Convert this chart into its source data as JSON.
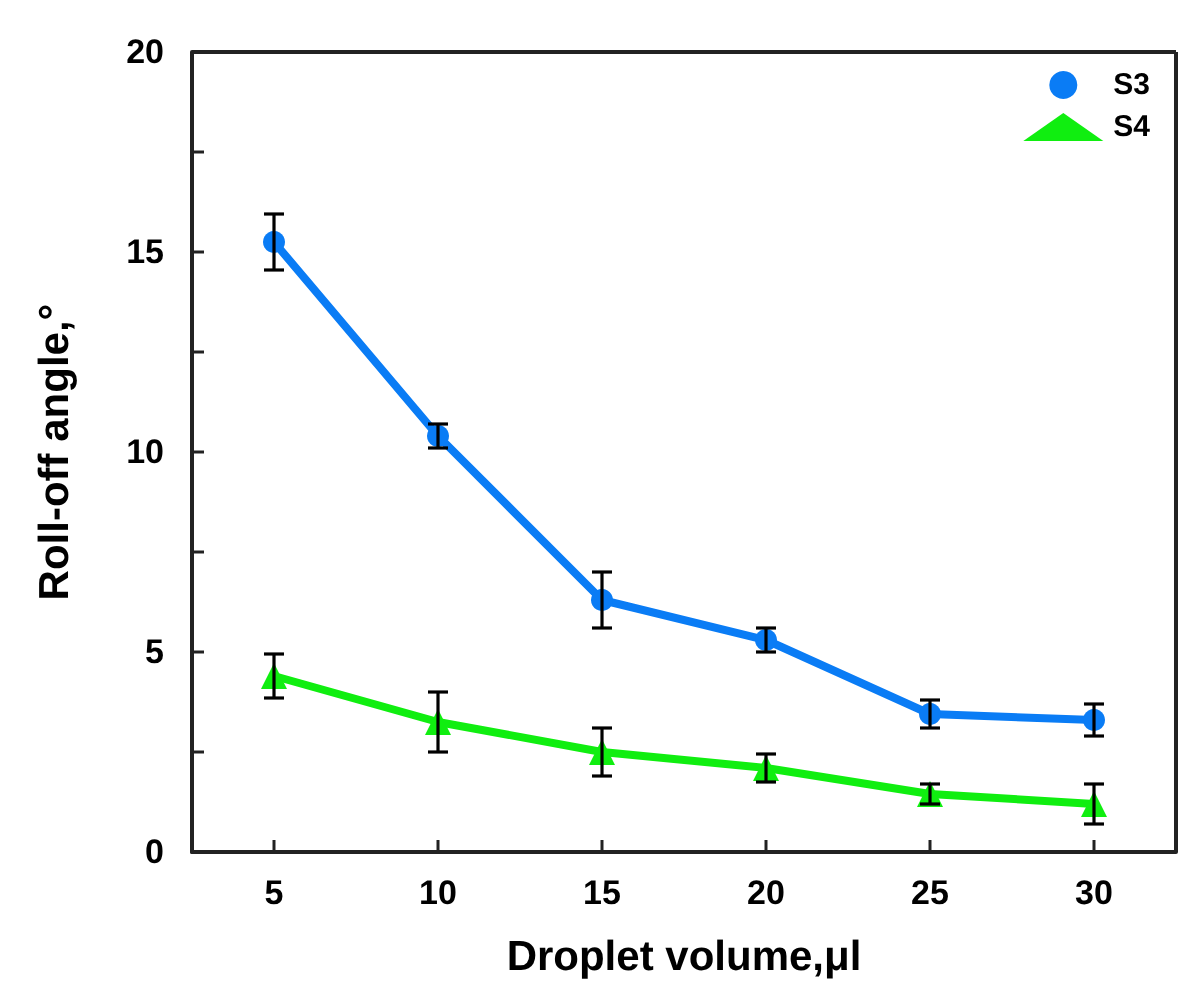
{
  "chart_data": {
    "type": "line",
    "xlabel": "Droplet volume,μl",
    "ylabel": "Roll-off angle,°",
    "x": [
      5,
      10,
      15,
      20,
      25,
      30
    ],
    "series": [
      {
        "name": "S3",
        "color": "#0a7cf5",
        "marker": "circle",
        "values": [
          15.25,
          10.4,
          6.3,
          5.3,
          3.45,
          3.3
        ],
        "errors": [
          0.7,
          0.3,
          0.7,
          0.3,
          0.35,
          0.4
        ]
      },
      {
        "name": "S4",
        "color": "#10ee10",
        "marker": "triangle",
        "values": [
          4.4,
          3.25,
          2.5,
          2.1,
          1.45,
          1.2
        ],
        "errors": [
          0.55,
          0.75,
          0.6,
          0.35,
          0.25,
          0.5
        ]
      }
    ],
    "xlim": [
      2.5,
      32.5
    ],
    "xticks": [
      5,
      10,
      15,
      20,
      25,
      30
    ],
    "ylim": [
      0,
      20
    ],
    "yticks": [
      0,
      {
        "value": 2.5,
        "label": null
      },
      5,
      {
        "value": 7.5,
        "label": null
      },
      10,
      {
        "value": 12.5,
        "label": null
      },
      15,
      {
        "value": 17.5,
        "label": null
      },
      20
    ],
    "grid": false,
    "legend": "top right",
    "line_style": "solid"
  }
}
